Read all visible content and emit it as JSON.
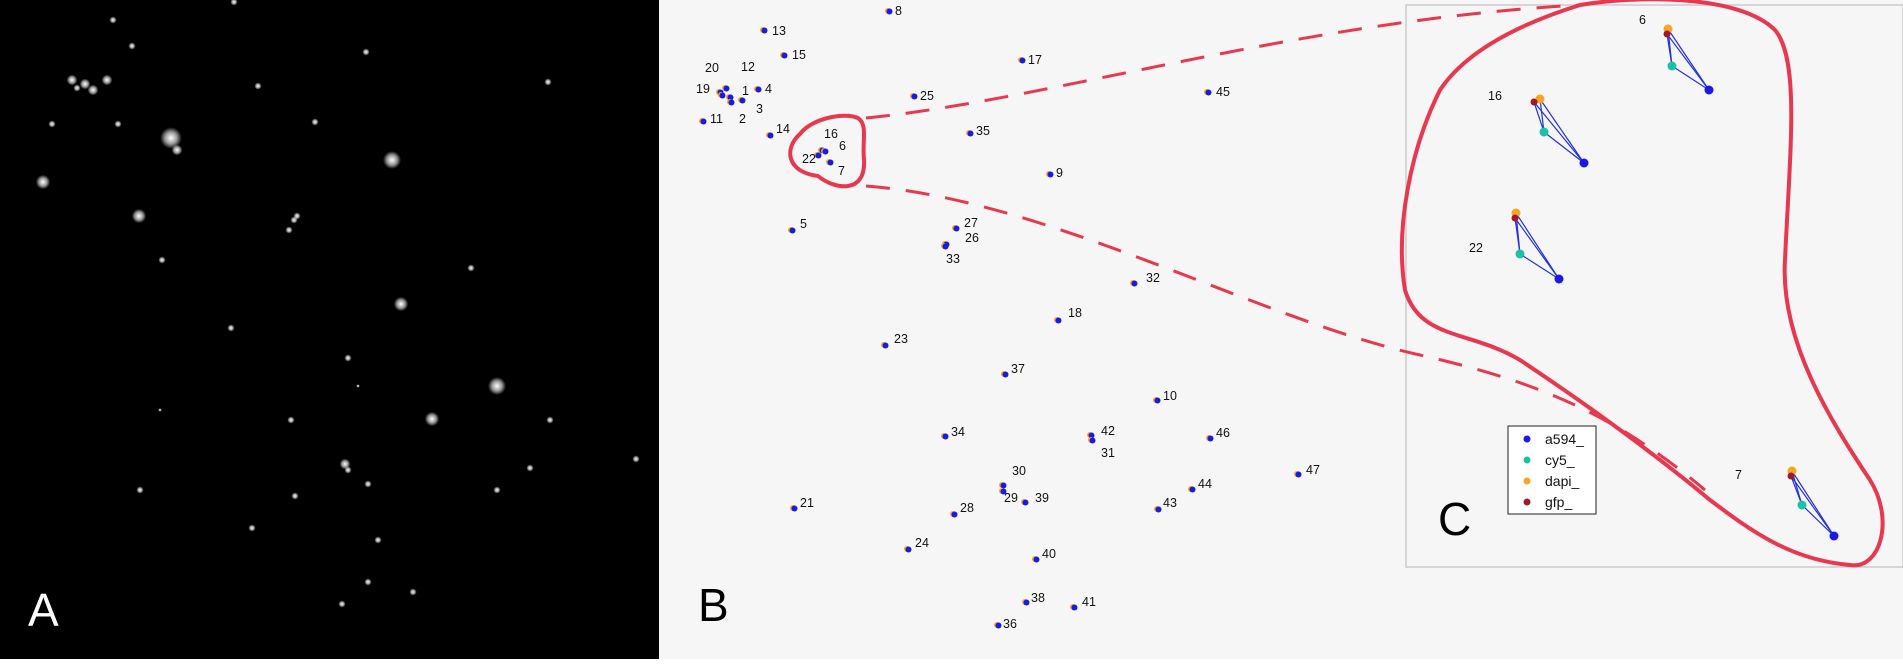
{
  "panels": {
    "a": {
      "label": "A"
    },
    "b": {
      "label": "B"
    },
    "c": {
      "label": "C"
    }
  },
  "colors": {
    "background_a": "#000000",
    "background_b": "#f6f6f6",
    "a594": "#1a1ae6",
    "cy5": "#19c1a7",
    "dapi": "#f5a623",
    "gfp": "#a0182c",
    "annotation": "#e8384f"
  },
  "spots_b": [
    {
      "id": "8"
    },
    {
      "id": "13"
    },
    {
      "id": "15"
    },
    {
      "id": "17"
    },
    {
      "id": "20"
    },
    {
      "id": "12"
    },
    {
      "id": "19"
    },
    {
      "id": "1"
    },
    {
      "id": "4"
    },
    {
      "id": "25"
    },
    {
      "id": "45"
    },
    {
      "id": "3"
    },
    {
      "id": "11"
    },
    {
      "id": "2"
    },
    {
      "id": "14"
    },
    {
      "id": "16"
    },
    {
      "id": "35"
    },
    {
      "id": "6"
    },
    {
      "id": "22"
    },
    {
      "id": "7"
    },
    {
      "id": "9"
    },
    {
      "id": "5"
    },
    {
      "id": "27"
    },
    {
      "id": "26"
    },
    {
      "id": "33"
    },
    {
      "id": "32"
    },
    {
      "id": "18"
    },
    {
      "id": "23"
    },
    {
      "id": "37"
    },
    {
      "id": "10"
    },
    {
      "id": "34"
    },
    {
      "id": "42"
    },
    {
      "id": "46"
    },
    {
      "id": "31"
    },
    {
      "id": "30"
    },
    {
      "id": "47"
    },
    {
      "id": "44"
    },
    {
      "id": "21"
    },
    {
      "id": "28"
    },
    {
      "id": "29"
    },
    {
      "id": "39"
    },
    {
      "id": "43"
    },
    {
      "id": "24"
    },
    {
      "id": "40"
    },
    {
      "id": "38"
    },
    {
      "id": "41"
    },
    {
      "id": "36"
    }
  ],
  "clusters_c": [
    {
      "id": "6"
    },
    {
      "id": "16"
    },
    {
      "id": "22"
    },
    {
      "id": "7"
    }
  ],
  "legend": [
    {
      "label": "a594_",
      "color": "#1a1ae6"
    },
    {
      "label": "cy5_",
      "color": "#19c1a7"
    },
    {
      "label": "dapi_",
      "color": "#f5a623"
    },
    {
      "label": "gfp_",
      "color": "#a0182c"
    }
  ]
}
